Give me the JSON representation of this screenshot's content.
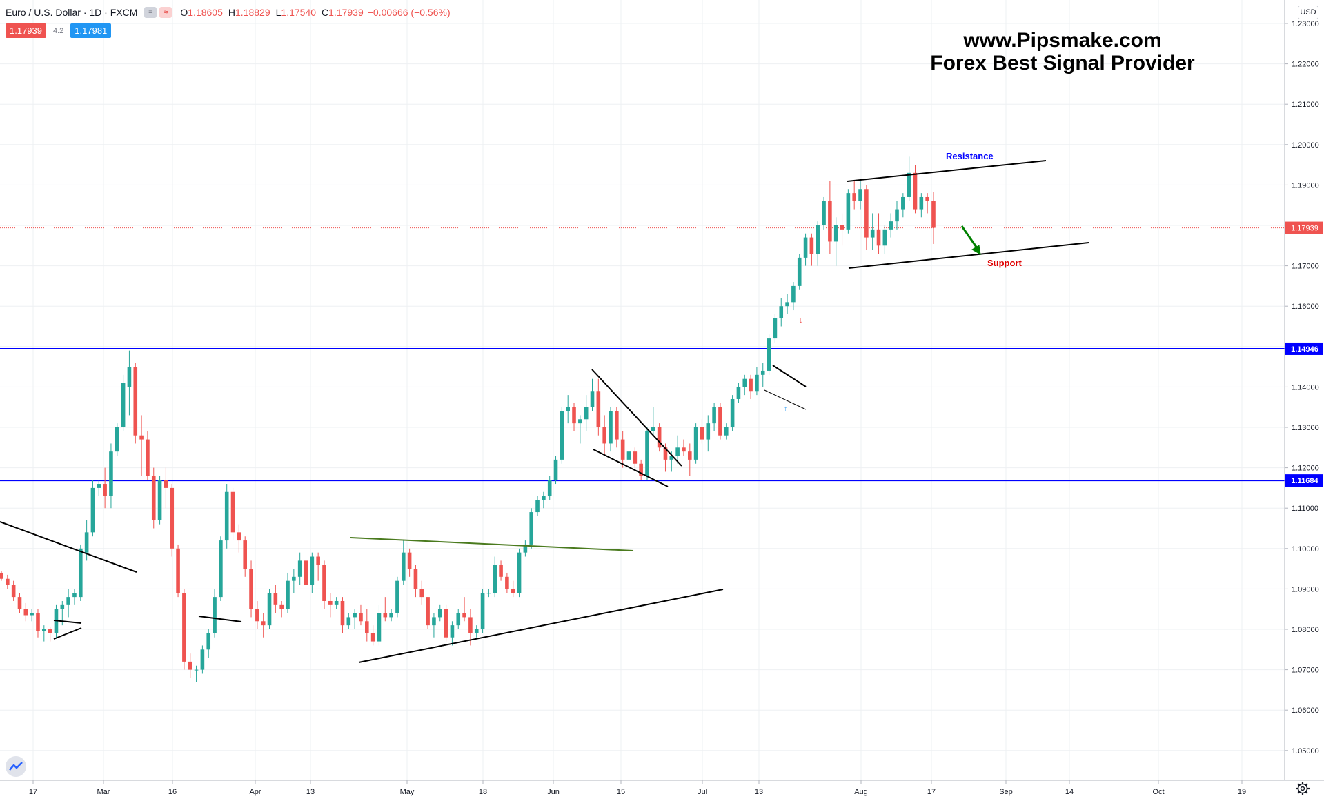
{
  "header": {
    "symbol": "Euro / U.S. Dollar · 1D · FXCM",
    "chip_1": "=",
    "chip_2": "≈",
    "ohlc": [
      {
        "label": "O",
        "value": "1.18605"
      },
      {
        "label": "H",
        "value": "1.18829"
      },
      {
        "label": "L",
        "value": "1.17540"
      },
      {
        "label": "C",
        "value": "1.17939"
      }
    ],
    "change": "−0.00666 (−0.56%)",
    "sell_price": "1.17939",
    "spread": "4.2",
    "buy_price": "1.17981"
  },
  "brand": {
    "line1": "www.Pipsmake.com",
    "line2": "Forex Best Signal Provider"
  },
  "currency_label": "USD",
  "colors": {
    "up": "#26a69a",
    "down": "#ef5350",
    "level_line": "#0000ff",
    "resistance_text": "#0000ff",
    "support_text": "#e00000",
    "arrow": "#008000",
    "trend_green": "#4a7a1e",
    "grid": "#eef0f3"
  },
  "icons": [
    "tradingview-logo-icon",
    "settings-gear-icon"
  ],
  "chart_data": {
    "type": "candlestick",
    "title": "",
    "xlabel": "",
    "ylabel": "",
    "ylim": [
      1.045,
      1.233
    ],
    "x_tick_labels": [
      "17",
      "Mar",
      "16",
      "Apr",
      "13",
      "May",
      "18",
      "Jun",
      "15",
      "Jul",
      "13",
      "Aug",
      "17",
      "Sep",
      "14",
      "Oct",
      "19"
    ],
    "y_tick_labels": [
      "1.23000",
      "1.22000",
      "1.21000",
      "1.20000",
      "1.19000",
      "1.18000",
      "1.17000",
      "1.16000",
      "1.15000",
      "1.14000",
      "1.13000",
      "1.12000",
      "1.11000",
      "1.10000",
      "1.09000",
      "1.08000",
      "1.07000",
      "1.06000",
      "1.05000"
    ],
    "grid": true,
    "horizontal_levels": [
      {
        "value": 1.14946,
        "label": "1.14946",
        "style": "solid"
      },
      {
        "value": 1.11684,
        "label": "1.11684",
        "style": "solid"
      }
    ],
    "last_price": {
      "value": 1.17939,
      "label": "1.17939",
      "style": "dotted"
    },
    "annotations": [
      {
        "text": "Resistance",
        "near_value": 1.1955
      },
      {
        "text": "Support",
        "near_value": 1.1695
      }
    ],
    "candles": [
      [
        1.094,
        1.0945,
        1.092,
        1.0925
      ],
      [
        1.0925,
        1.0935,
        1.09,
        1.091
      ],
      [
        1.091,
        1.092,
        1.087,
        1.088
      ],
      [
        1.088,
        1.089,
        1.084,
        1.085
      ],
      [
        1.085,
        1.0865,
        1.082,
        1.0835
      ],
      [
        1.0835,
        1.085,
        1.082,
        1.084
      ],
      [
        1.084,
        1.085,
        1.078,
        1.0795
      ],
      [
        1.0795,
        1.081,
        1.077,
        1.08
      ],
      [
        1.08,
        1.0805,
        1.077,
        1.079
      ],
      [
        1.079,
        1.086,
        1.078,
        1.085
      ],
      [
        1.085,
        1.087,
        1.081,
        1.086
      ],
      [
        1.086,
        1.09,
        1.083,
        1.088
      ],
      [
        1.088,
        1.09,
        1.086,
        1.089
      ],
      [
        1.088,
        1.101,
        1.087,
        1.1
      ],
      [
        1.099,
        1.107,
        1.097,
        1.104
      ],
      [
        1.104,
        1.117,
        1.103,
        1.115
      ],
      [
        1.115,
        1.117,
        1.113,
        1.116
      ],
      [
        1.116,
        1.12,
        1.11,
        1.113
      ],
      [
        1.113,
        1.126,
        1.11,
        1.124
      ],
      [
        1.124,
        1.131,
        1.123,
        1.13
      ],
      [
        1.13,
        1.143,
        1.129,
        1.141
      ],
      [
        1.14,
        1.149,
        1.133,
        1.145
      ],
      [
        1.145,
        1.146,
        1.126,
        1.128
      ],
      [
        1.128,
        1.133,
        1.118,
        1.127
      ],
      [
        1.127,
        1.129,
        1.117,
        1.118
      ],
      [
        1.118,
        1.12,
        1.105,
        1.107
      ],
      [
        1.107,
        1.118,
        1.106,
        1.117
      ],
      [
        1.117,
        1.12,
        1.11,
        1.115
      ],
      [
        1.115,
        1.116,
        1.098,
        1.1
      ],
      [
        1.1,
        1.101,
        1.088,
        1.089
      ],
      [
        1.089,
        1.09,
        1.07,
        1.072
      ],
      [
        1.072,
        1.074,
        1.068,
        1.07
      ],
      [
        1.07,
        1.071,
        1.067,
        1.07
      ],
      [
        1.07,
        1.076,
        1.069,
        1.075
      ],
      [
        1.075,
        1.08,
        1.073,
        1.079
      ],
      [
        1.079,
        1.09,
        1.078,
        1.088
      ],
      [
        1.088,
        1.103,
        1.087,
        1.102
      ],
      [
        1.102,
        1.116,
        1.1,
        1.114
      ],
      [
        1.114,
        1.115,
        1.102,
        1.104
      ],
      [
        1.104,
        1.106,
        1.099,
        1.102
      ],
      [
        1.102,
        1.103,
        1.093,
        1.095
      ],
      [
        1.095,
        1.097,
        1.083,
        1.085
      ],
      [
        1.085,
        1.087,
        1.08,
        1.082
      ],
      [
        1.082,
        1.084,
        1.078,
        1.081
      ],
      [
        1.081,
        1.09,
        1.08,
        1.089
      ],
      [
        1.089,
        1.091,
        1.084,
        1.086
      ],
      [
        1.086,
        1.087,
        1.083,
        1.085
      ],
      [
        1.085,
        1.094,
        1.084,
        1.092
      ],
      [
        1.092,
        1.095,
        1.089,
        1.093
      ],
      [
        1.093,
        1.099,
        1.091,
        1.097
      ],
      [
        1.097,
        1.098,
        1.09,
        1.091
      ],
      [
        1.091,
        1.099,
        1.089,
        1.098
      ],
      [
        1.098,
        1.099,
        1.092,
        1.096
      ],
      [
        1.096,
        1.097,
        1.085,
        1.087
      ],
      [
        1.087,
        1.089,
        1.083,
        1.086
      ],
      [
        1.086,
        1.088,
        1.085,
        1.087
      ],
      [
        1.087,
        1.088,
        1.079,
        1.081
      ],
      [
        1.081,
        1.084,
        1.08,
        1.083
      ],
      [
        1.083,
        1.085,
        1.08,
        1.084
      ],
      [
        1.084,
        1.086,
        1.081,
        1.082
      ],
      [
        1.082,
        1.085,
        1.077,
        1.079
      ],
      [
        1.079,
        1.081,
        1.076,
        1.077
      ],
      [
        1.077,
        1.086,
        1.076,
        1.084
      ],
      [
        1.084,
        1.088,
        1.082,
        1.083
      ],
      [
        1.083,
        1.085,
        1.082,
        1.084
      ],
      [
        1.084,
        1.093,
        1.083,
        1.092
      ],
      [
        1.092,
        1.102,
        1.091,
        1.099
      ],
      [
        1.099,
        1.1,
        1.093,
        1.095
      ],
      [
        1.095,
        1.096,
        1.088,
        1.09
      ],
      [
        1.09,
        1.092,
        1.086,
        1.088
      ],
      [
        1.088,
        1.088,
        1.08,
        1.081
      ],
      [
        1.081,
        1.084,
        1.078,
        1.083
      ],
      [
        1.083,
        1.086,
        1.082,
        1.085
      ],
      [
        1.085,
        1.086,
        1.077,
        1.078
      ],
      [
        1.078,
        1.082,
        1.076,
        1.081
      ],
      [
        1.081,
        1.085,
        1.08,
        1.084
      ],
      [
        1.084,
        1.088,
        1.082,
        1.083
      ],
      [
        1.083,
        1.085,
        1.076,
        1.079
      ],
      [
        1.079,
        1.081,
        1.078,
        1.08
      ],
      [
        1.08,
        1.09,
        1.079,
        1.089
      ],
      [
        1.089,
        1.09,
        1.088,
        1.089
      ],
      [
        1.089,
        1.098,
        1.088,
        1.096
      ],
      [
        1.096,
        1.097,
        1.092,
        1.093
      ],
      [
        1.093,
        1.094,
        1.089,
        1.09
      ],
      [
        1.09,
        1.092,
        1.088,
        1.089
      ],
      [
        1.089,
        1.1,
        1.088,
        1.099
      ],
      [
        1.099,
        1.102,
        1.098,
        1.101
      ],
      [
        1.101,
        1.11,
        1.1,
        1.109
      ],
      [
        1.109,
        1.113,
        1.108,
        1.112
      ],
      [
        1.112,
        1.114,
        1.11,
        1.113
      ],
      [
        1.113,
        1.118,
        1.112,
        1.117
      ],
      [
        1.117,
        1.123,
        1.116,
        1.122
      ],
      [
        1.122,
        1.135,
        1.121,
        1.134
      ],
      [
        1.134,
        1.138,
        1.131,
        1.135
      ],
      [
        1.135,
        1.136,
        1.129,
        1.131
      ],
      [
        1.131,
        1.133,
        1.126,
        1.132
      ],
      [
        1.132,
        1.138,
        1.129,
        1.135
      ],
      [
        1.135,
        1.142,
        1.134,
        1.139
      ],
      [
        1.139,
        1.142,
        1.128,
        1.13
      ],
      [
        1.13,
        1.133,
        1.123,
        1.126
      ],
      [
        1.126,
        1.135,
        1.124,
        1.134
      ],
      [
        1.134,
        1.135,
        1.125,
        1.127
      ],
      [
        1.127,
        1.129,
        1.12,
        1.122
      ],
      [
        1.122,
        1.126,
        1.121,
        1.124
      ],
      [
        1.124,
        1.125,
        1.12,
        1.121
      ],
      [
        1.121,
        1.122,
        1.117,
        1.118
      ],
      [
        1.118,
        1.13,
        1.117,
        1.129
      ],
      [
        1.129,
        1.135,
        1.128,
        1.13
      ],
      [
        1.13,
        1.131,
        1.124,
        1.125
      ],
      [
        1.125,
        1.126,
        1.119,
        1.122
      ],
      [
        1.122,
        1.124,
        1.119,
        1.123
      ],
      [
        1.123,
        1.128,
        1.121,
        1.125
      ],
      [
        1.125,
        1.127,
        1.123,
        1.124
      ],
      [
        1.124,
        1.126,
        1.118,
        1.122
      ],
      [
        1.122,
        1.131,
        1.121,
        1.13
      ],
      [
        1.13,
        1.132,
        1.126,
        1.127
      ],
      [
        1.127,
        1.133,
        1.124,
        1.131
      ],
      [
        1.131,
        1.136,
        1.129,
        1.135
      ],
      [
        1.135,
        1.136,
        1.127,
        1.128
      ],
      [
        1.128,
        1.131,
        1.127,
        1.13
      ],
      [
        1.13,
        1.138,
        1.129,
        1.137
      ],
      [
        1.137,
        1.141,
        1.136,
        1.14
      ],
      [
        1.14,
        1.143,
        1.138,
        1.142
      ],
      [
        1.142,
        1.143,
        1.137,
        1.139
      ],
      [
        1.139,
        1.145,
        1.138,
        1.143
      ],
      [
        1.143,
        1.146,
        1.14,
        1.144
      ],
      [
        1.144,
        1.153,
        1.143,
        1.152
      ],
      [
        1.152,
        1.158,
        1.151,
        1.157
      ],
      [
        1.157,
        1.162,
        1.155,
        1.16
      ],
      [
        1.16,
        1.163,
        1.158,
        1.161
      ],
      [
        1.161,
        1.166,
        1.159,
        1.165
      ],
      [
        1.165,
        1.173,
        1.164,
        1.172
      ],
      [
        1.172,
        1.178,
        1.17,
        1.177
      ],
      [
        1.177,
        1.178,
        1.17,
        1.173
      ],
      [
        1.173,
        1.181,
        1.17,
        1.18
      ],
      [
        1.18,
        1.187,
        1.179,
        1.186
      ],
      [
        1.186,
        1.191,
        1.173,
        1.176
      ],
      [
        1.176,
        1.182,
        1.17,
        1.18
      ],
      [
        1.18,
        1.183,
        1.175,
        1.179
      ],
      [
        1.179,
        1.189,
        1.178,
        1.188
      ],
      [
        1.188,
        1.191,
        1.184,
        1.186
      ],
      [
        1.186,
        1.191,
        1.184,
        1.189
      ],
      [
        1.189,
        1.19,
        1.174,
        1.177
      ],
      [
        1.177,
        1.183,
        1.174,
        1.179
      ],
      [
        1.179,
        1.183,
        1.173,
        1.175
      ],
      [
        1.175,
        1.18,
        1.173,
        1.179
      ],
      [
        1.179,
        1.183,
        1.177,
        1.181
      ],
      [
        1.181,
        1.186,
        1.179,
        1.184
      ],
      [
        1.184,
        1.188,
        1.182,
        1.187
      ],
      [
        1.187,
        1.197,
        1.186,
        1.193
      ],
      [
        1.193,
        1.195,
        1.183,
        1.184
      ],
      [
        1.184,
        1.188,
        1.182,
        1.187
      ],
      [
        1.187,
        1.188,
        1.183,
        1.186
      ],
      [
        1.186,
        1.1883,
        1.1754,
        1.1794
      ]
    ]
  }
}
